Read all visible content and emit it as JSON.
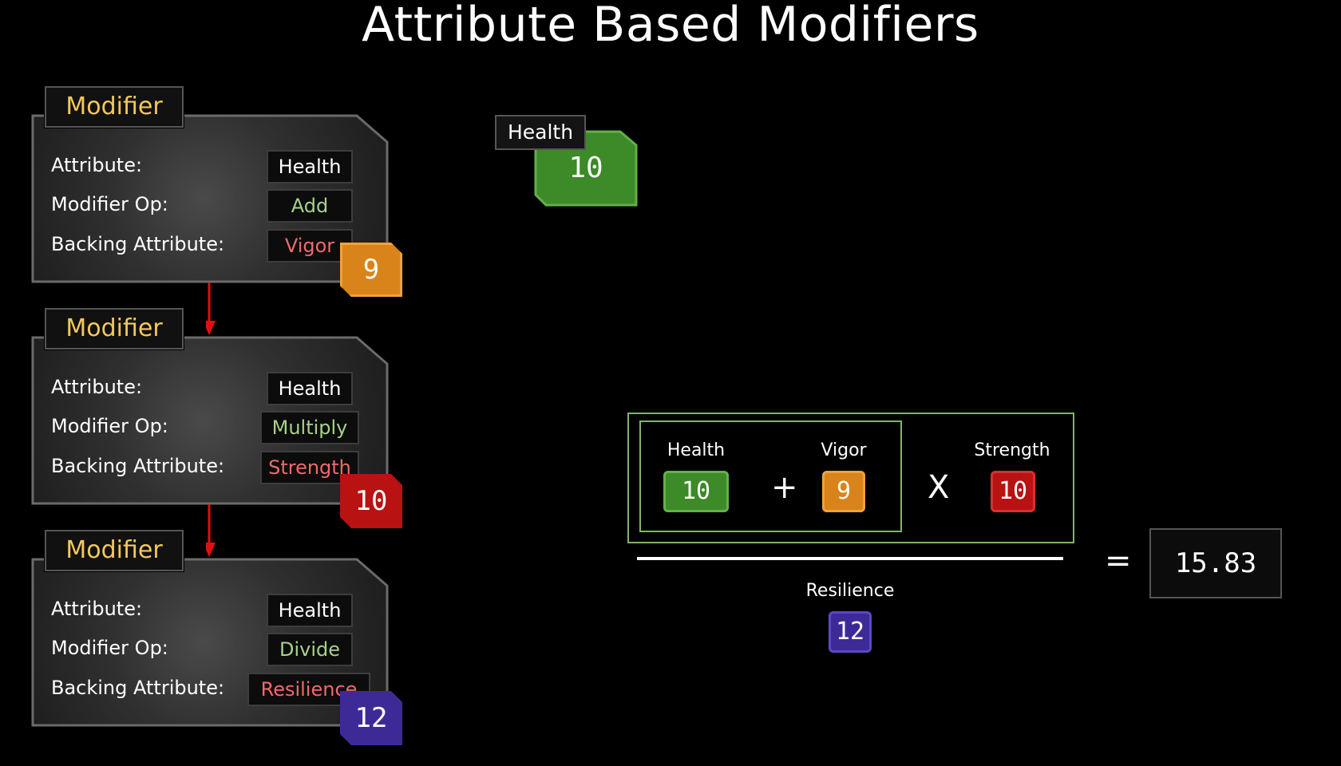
{
  "title": "Attribute Based Modifiers",
  "modifiers": [
    {
      "tag": "Modifier",
      "attribute_label": "Attribute:",
      "attribute_value": "Health",
      "op_label": "Modifier Op:",
      "op_value": "Add",
      "backing_label": "Backing Attribute:",
      "backing_value": "Vigor",
      "backing_number": "9",
      "badge_color": "#d8841a"
    },
    {
      "tag": "Modifier",
      "attribute_label": "Attribute:",
      "attribute_value": "Health",
      "op_label": "Modifier Op:",
      "op_value": "Multiply",
      "backing_label": "Backing Attribute:",
      "backing_value": "Strength",
      "backing_number": "10",
      "badge_color": "#b81212"
    },
    {
      "tag": "Modifier",
      "attribute_label": "Attribute:",
      "attribute_value": "Health",
      "op_label": "Modifier Op:",
      "op_value": "Divide",
      "backing_label": "Backing Attribute:",
      "backing_value": "Resilience",
      "backing_number": "12",
      "badge_color": "#3e2a96"
    }
  ],
  "health_node": {
    "label": "Health",
    "value": "10",
    "color": "#3c8a28"
  },
  "formula": {
    "health_label": "Health",
    "health_value": "10",
    "plus": "+",
    "vigor_label": "Vigor",
    "vigor_value": "9",
    "times": "X",
    "strength_label": "Strength",
    "strength_value": "10",
    "resilience_label": "Resilience",
    "resilience_value": "12",
    "equals": "=",
    "result": "15.83"
  }
}
